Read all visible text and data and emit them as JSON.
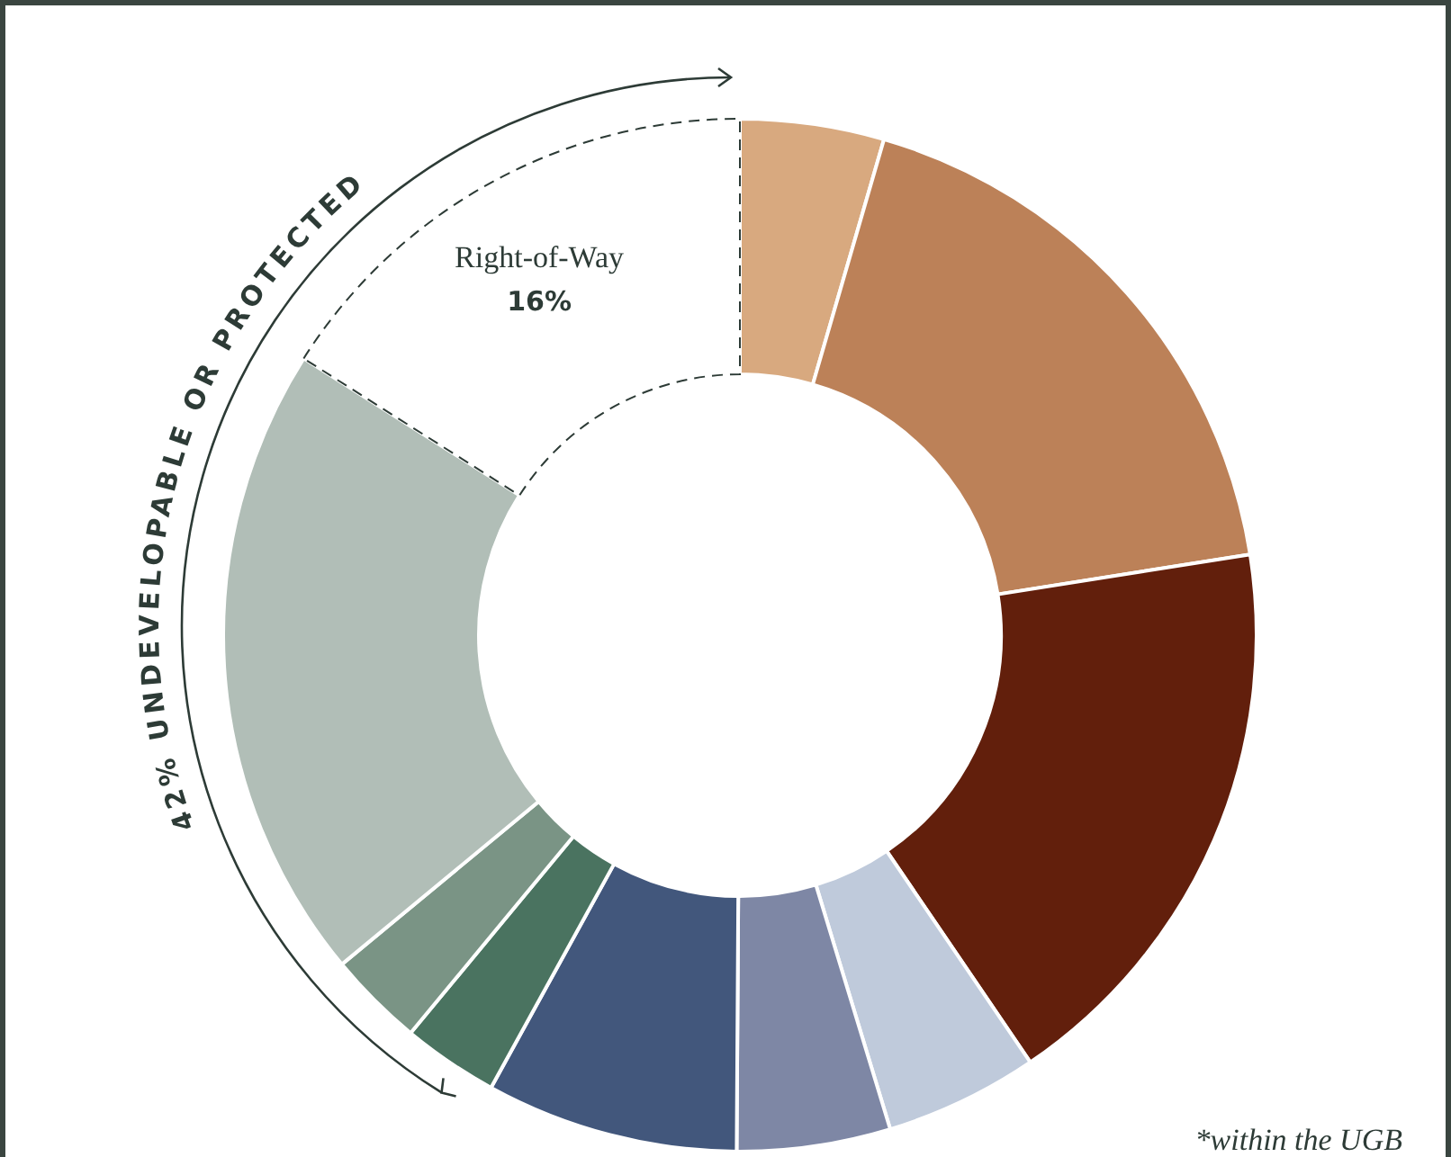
{
  "chart_data": {
    "type": "donut",
    "categories": [
      null,
      null,
      null,
      null,
      null,
      null,
      null,
      null,
      null,
      "Right-of-Way"
    ],
    "values": [
      4.5,
      18,
      18,
      4.8,
      4.8,
      7.9,
      3,
      3,
      20,
      16
    ],
    "colors": [
      "#d8a97f",
      "#bc8158",
      "#621f0c",
      "#bfcadb",
      "#7e87a5",
      "#42577c",
      "#4a7360",
      "#7a9485",
      "#b1beb7",
      "#ffffff"
    ],
    "value_labels": [
      null,
      null,
      null,
      null,
      null,
      null,
      null,
      null,
      null,
      "16%"
    ],
    "annotations": [
      "42% UNDEVELOPABLE OR PROTECTED",
      "*within the UGB"
    ]
  }
}
